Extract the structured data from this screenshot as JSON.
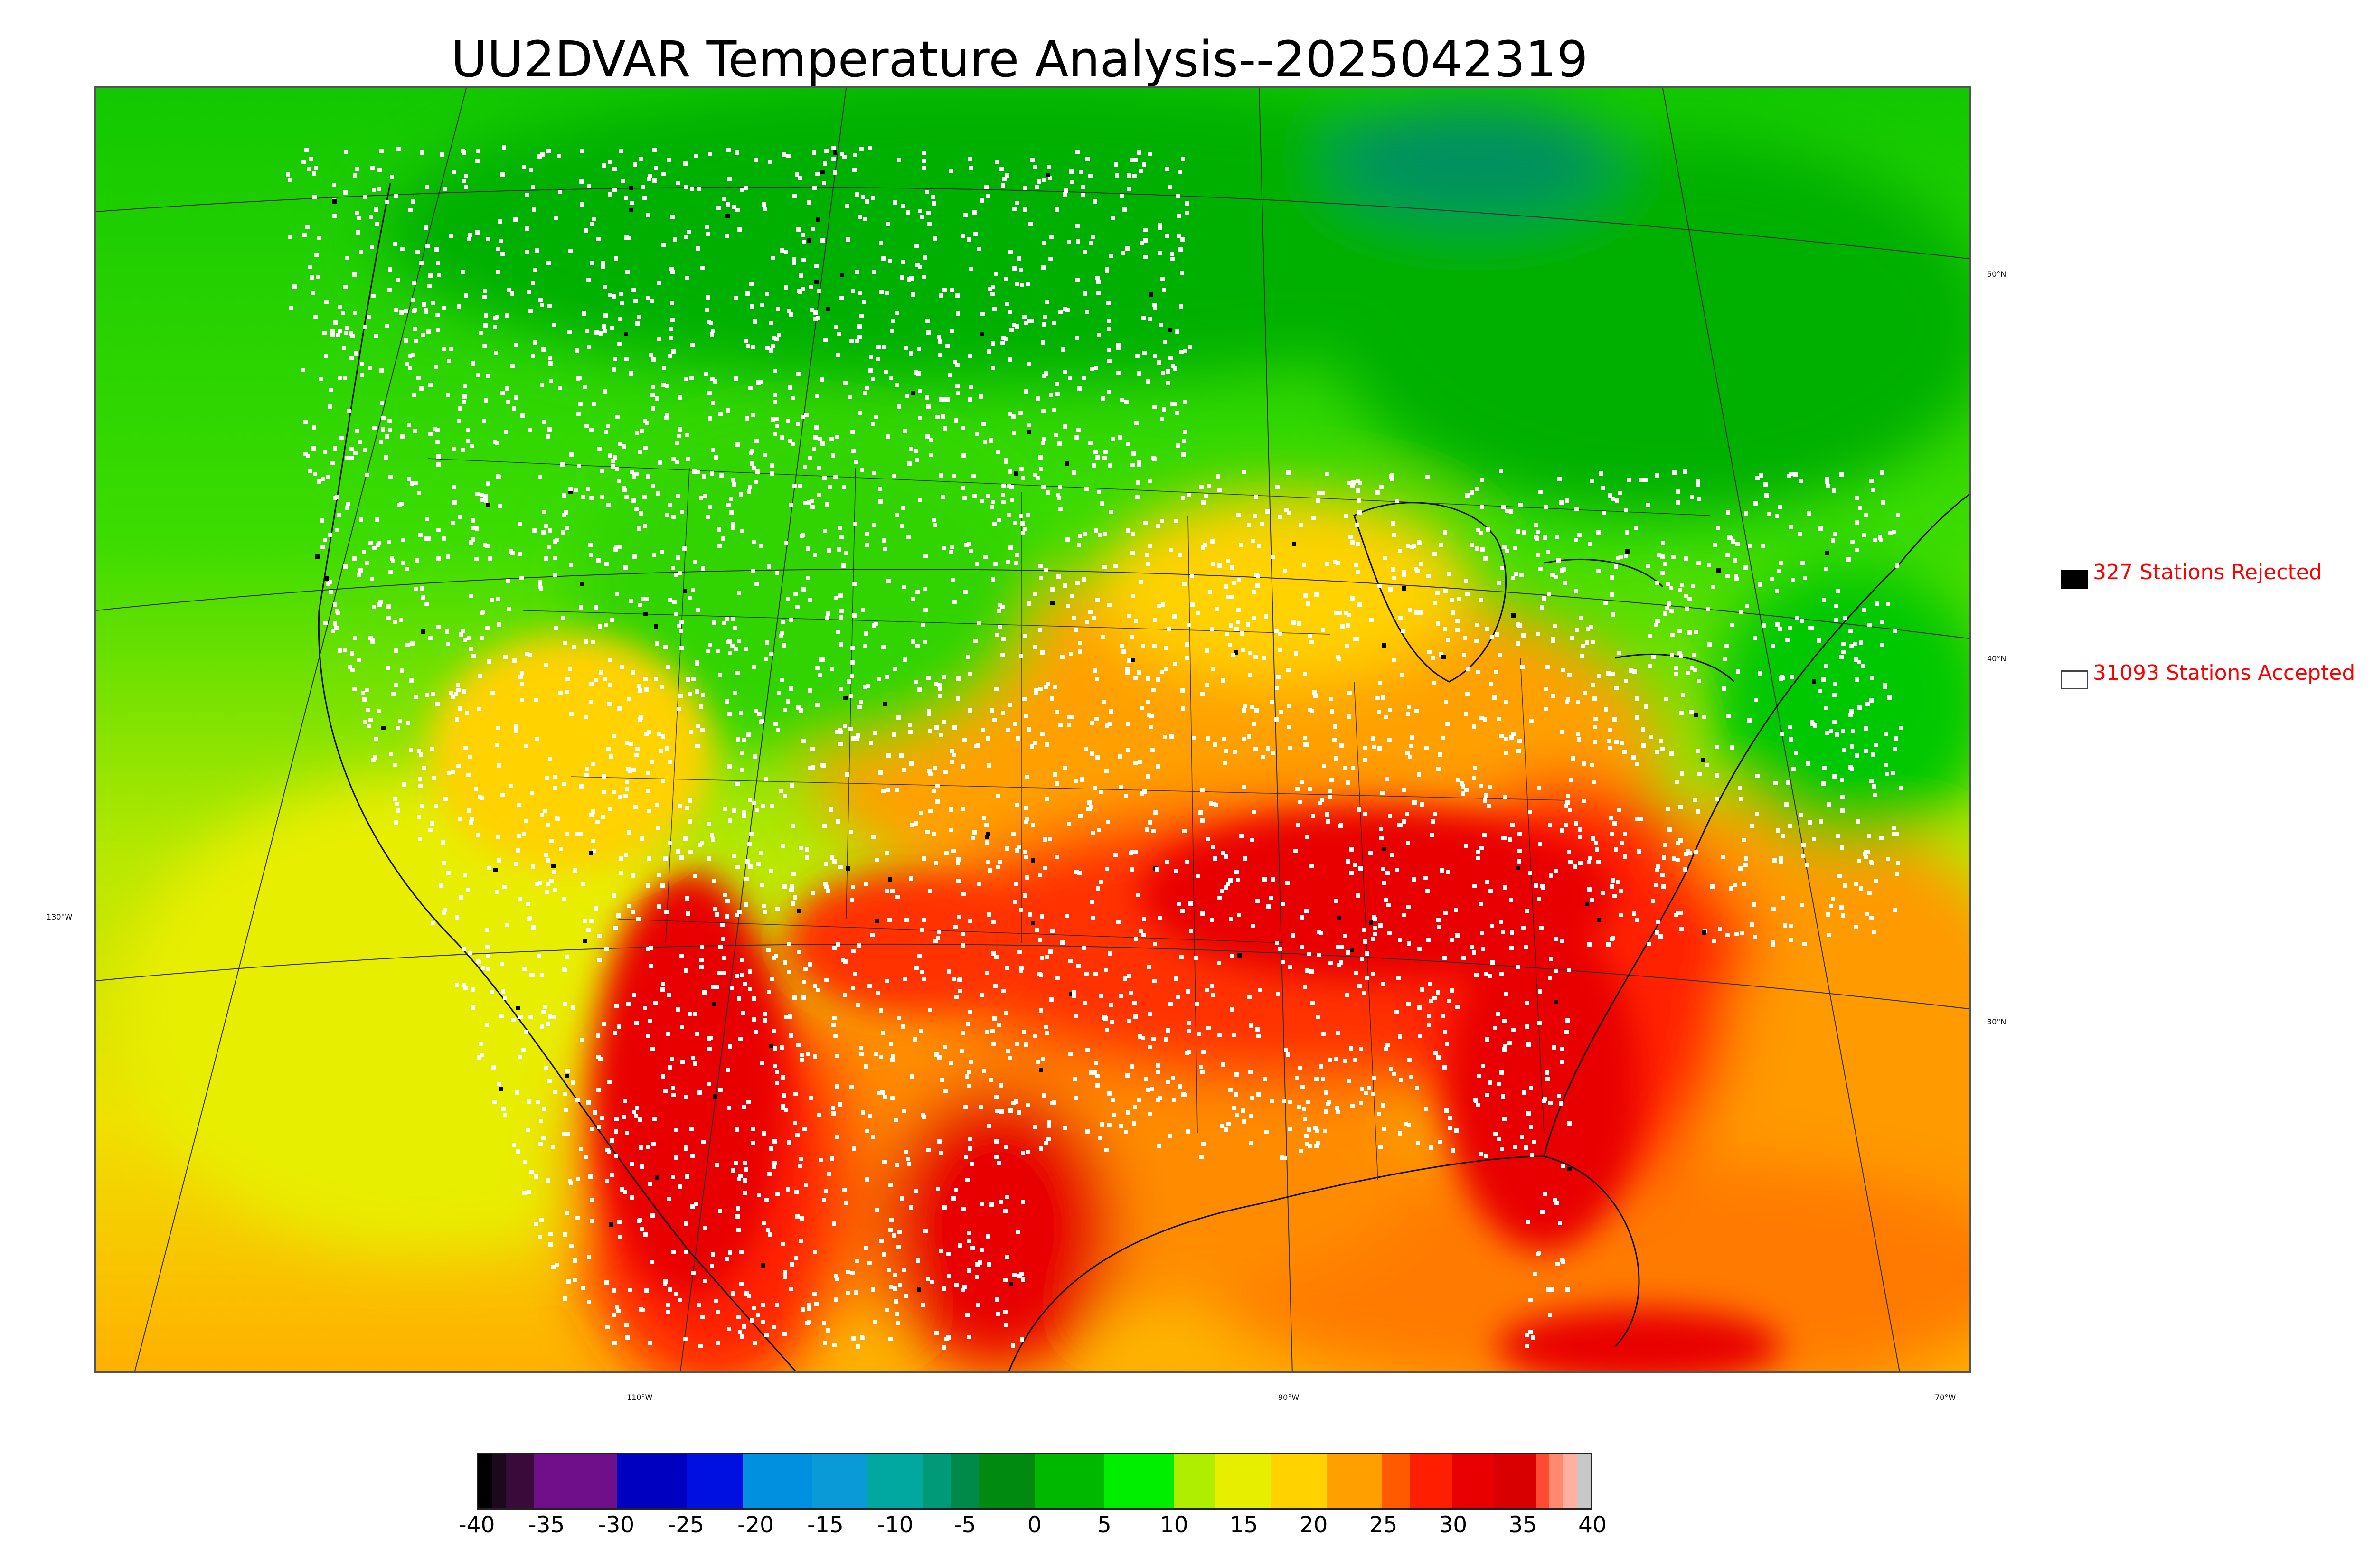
{
  "title": "UU2DVAR Temperature Analysis--2025042319",
  "legend": {
    "rejected": {
      "label": "327 Stations Rejected",
      "marker_color": "#000000"
    },
    "accepted": {
      "label": "31093 Stations Accepted",
      "marker_color": "#ffffff"
    },
    "text_color": "#ff0000"
  },
  "map": {
    "lat_labels": [
      "50°N",
      "40°N",
      "30°N"
    ],
    "lon_labels": [
      "130°W",
      "110°W",
      "90°W",
      "70°W"
    ]
  },
  "colorbar": {
    "range": [
      -40,
      40
    ],
    "ticks": [
      "-40",
      "-35",
      "-30",
      "-25",
      "-20",
      "-15",
      "-10",
      "-5",
      "0",
      "5",
      "10",
      "15",
      "20",
      "25",
      "30",
      "35",
      "40"
    ],
    "segments": [
      {
        "from": -40,
        "to": -39,
        "color": "#000000"
      },
      {
        "from": -39,
        "to": -38,
        "color": "#1c0a1c"
      },
      {
        "from": -38,
        "to": -36,
        "color": "#3a0a3a"
      },
      {
        "from": -36,
        "to": -30,
        "color": "#6f0f8a"
      },
      {
        "from": -30,
        "to": -25,
        "color": "#0000c0"
      },
      {
        "from": -25,
        "to": -21,
        "color": "#0010e0"
      },
      {
        "from": -21,
        "to": -16,
        "color": "#0090e0"
      },
      {
        "from": -16,
        "to": -12,
        "color": "#0a9ad8"
      },
      {
        "from": -12,
        "to": -8,
        "color": "#00a8a0"
      },
      {
        "from": -8,
        "to": -6,
        "color": "#009a78"
      },
      {
        "from": -6,
        "to": -4,
        "color": "#008a4a"
      },
      {
        "from": -4,
        "to": 0,
        "color": "#008a10"
      },
      {
        "from": 0,
        "to": 5,
        "color": "#00b800"
      },
      {
        "from": 5,
        "to": 10,
        "color": "#00ee00"
      },
      {
        "from": 10,
        "to": 13,
        "color": "#b0ee00"
      },
      {
        "from": 13,
        "to": 17,
        "color": "#e8ee00"
      },
      {
        "from": 17,
        "to": 21,
        "color": "#ffd200"
      },
      {
        "from": 21,
        "to": 25,
        "color": "#ffa000"
      },
      {
        "from": 25,
        "to": 27,
        "color": "#ff5a00"
      },
      {
        "from": 27,
        "to": 30,
        "color": "#ff1e00"
      },
      {
        "from": 30,
        "to": 33,
        "color": "#e80000"
      },
      {
        "from": 33,
        "to": 36,
        "color": "#d80000"
      },
      {
        "from": 36,
        "to": 37,
        "color": "#ff4a30"
      },
      {
        "from": 37,
        "to": 38,
        "color": "#ff8a70"
      },
      {
        "from": 38,
        "to": 39,
        "color": "#ffb0a0"
      },
      {
        "from": 39,
        "to": 40,
        "color": "#c8c8c8"
      }
    ]
  }
}
